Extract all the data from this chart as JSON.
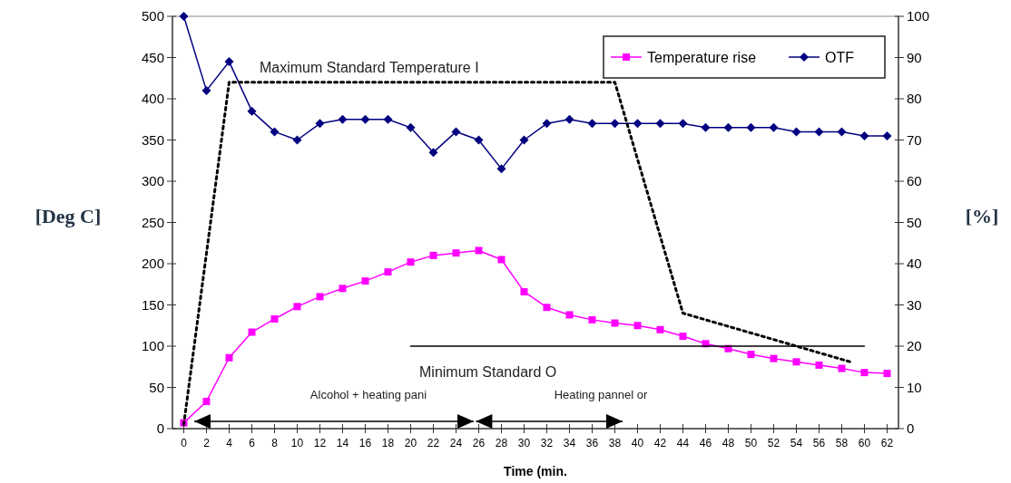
{
  "chart_data": {
    "type": "line",
    "xlabel": "Time (min.",
    "ylabel": "[Deg C]",
    "y2label": "[%]",
    "x": [
      0,
      2,
      4,
      6,
      8,
      10,
      12,
      14,
      16,
      18,
      20,
      22,
      24,
      26,
      28,
      30,
      32,
      34,
      36,
      38,
      40,
      42,
      44,
      46,
      48,
      50,
      52,
      54,
      56,
      58,
      60,
      62
    ],
    "xlim": [
      -1,
      63
    ],
    "xticks": [
      0,
      2,
      4,
      6,
      8,
      10,
      12,
      14,
      16,
      18,
      20,
      22,
      24,
      26,
      28,
      30,
      32,
      34,
      36,
      38,
      40,
      42,
      44,
      46,
      48,
      50,
      52,
      54,
      56,
      58,
      60,
      62
    ],
    "ylim": [
      0,
      500
    ],
    "yticks": [
      0,
      50,
      100,
      150,
      200,
      250,
      300,
      350,
      400,
      450,
      500
    ],
    "y2lim": [
      0,
      100
    ],
    "y2ticks": [
      0,
      10,
      20,
      30,
      40,
      50,
      60,
      70,
      80,
      90,
      100
    ],
    "series": [
      {
        "name": "Temperature rise",
        "color": "#ff00ff",
        "marker": "square",
        "values": [
          7,
          33,
          86,
          117,
          133,
          148,
          160,
          170,
          179,
          190,
          202,
          210,
          213,
          216,
          205,
          166,
          147,
          138,
          132,
          128,
          125,
          120,
          112,
          103,
          97,
          90,
          85,
          81,
          77,
          73,
          68,
          67
        ]
      },
      {
        "name": "OTF",
        "color": "#000080",
        "marker": "diamond",
        "axis": "y2",
        "values": [
          100,
          82,
          89,
          77,
          72,
          70,
          74,
          75,
          75,
          75,
          73,
          67,
          72,
          70,
          63,
          70,
          74,
          75,
          74,
          74,
          74,
          74,
          74,
          73,
          73,
          73,
          73,
          72,
          72,
          72,
          71,
          71
        ]
      },
      {
        "color": "#000000",
        "marker": "none",
        "line_style": "dotted",
        "x": [
          0,
          4,
          38,
          44,
          59
        ],
        "values": [
          5,
          420,
          420,
          140,
          80
        ]
      },
      {
        "color": "#000000",
        "marker": "none",
        "line_style": "solid",
        "x": [
          20,
          60
        ],
        "values": [
          100,
          100
        ]
      }
    ],
    "annotations": [
      "Maximum Standard Temperature I",
      "Minimum  Standard O",
      "Alcohol + heating pani",
      "Heating pannel  or"
    ],
    "legend": "top right",
    "grid": false
  }
}
